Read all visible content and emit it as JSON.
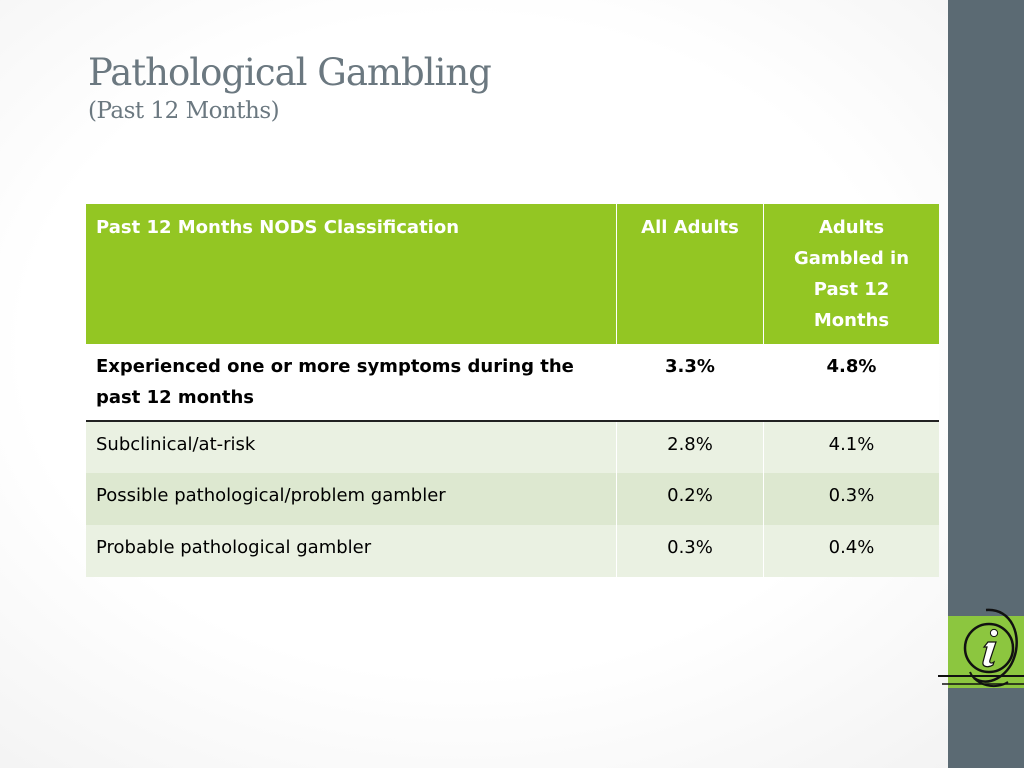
{
  "slide": {
    "title": "Pathological Gambling",
    "subtitle": "(Past 12 Months)"
  },
  "table": {
    "headers": [
      "Past 12 Months NODS Classification",
      "All Adults",
      "Adults Gambled in Past 12 Months"
    ],
    "rows": [
      [
        "Experienced one or more symptoms during the past 12 months",
        "3.3%",
        "4.8%"
      ],
      [
        "Subclinical/at-risk",
        "2.8%",
        "4.1%"
      ],
      [
        "Possible pathological/problem gambler",
        "0.2%",
        "0.3%"
      ],
      [
        "Probable pathological gambler",
        "0.3%",
        "0.4%"
      ]
    ]
  },
  "icons": {
    "info": "info-icon"
  },
  "colors": {
    "header_green": "#93c623",
    "sidebar": "#5b6a73",
    "title_gray": "#6b7880",
    "row_light": "#eaf1e2",
    "row_dark": "#dde8d0",
    "icon_green": "#8cc63f"
  }
}
